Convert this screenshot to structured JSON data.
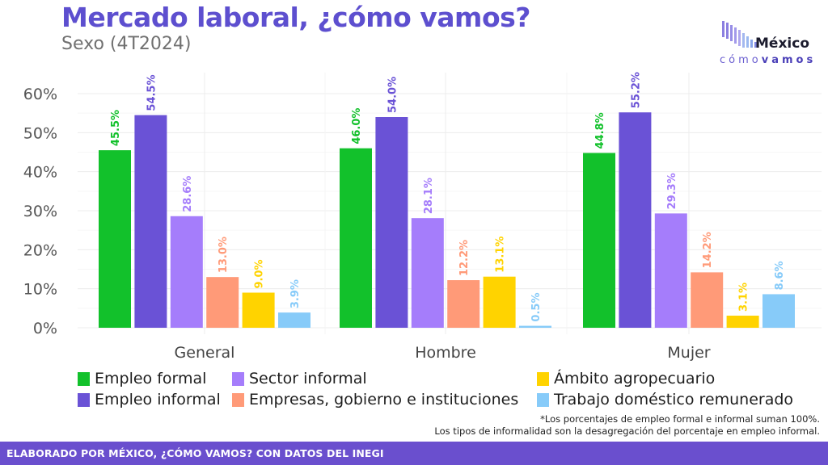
{
  "header": {
    "title": "Mercado laboral, ¿cómo vamos?",
    "subtitle": "Sexo (4T2024)"
  },
  "logo": {
    "name": "México",
    "tagline_light": "cómo",
    "tagline_bold": "vamos"
  },
  "colors": {
    "title": "#5d4fcf",
    "footer": "#6a4fce",
    "Empleo formal": "#12c12b",
    "Empleo informal": "#6a52d6",
    "Sector informal": "#a57dfb",
    "Empresas, gobierno e instituciones": "#ff9a78",
    "Ámbito agropecuario": "#ffd300",
    "Trabajo doméstico remunerado": "#87cbf9"
  },
  "chart_data": {
    "type": "bar",
    "title": "Mercado laboral, ¿cómo vamos?",
    "subtitle": "Sexo (4T2024)",
    "xlabel": "",
    "ylabel": "",
    "categories": [
      "General",
      "Hombre",
      "Mujer"
    ],
    "ylim": [
      0,
      60
    ],
    "yticks": [
      "0%",
      "10%",
      "20%",
      "30%",
      "40%",
      "50%",
      "60%"
    ],
    "ytick_values": [
      0,
      10,
      20,
      30,
      40,
      50,
      60
    ],
    "grid": true,
    "legend_position": "bottom",
    "series": [
      {
        "name": "Empleo formal",
        "values": [
          45.5,
          46.0,
          44.8
        ],
        "labels": [
          "45.5%",
          "46.0%",
          "44.8%"
        ]
      },
      {
        "name": "Empleo informal",
        "values": [
          54.5,
          54.0,
          55.2
        ],
        "labels": [
          "54.5%",
          "54.0%",
          "55.2%"
        ]
      },
      {
        "name": "Sector informal",
        "values": [
          28.6,
          28.1,
          29.3
        ],
        "labels": [
          "28.6%",
          "28.1%",
          "29.3%"
        ]
      },
      {
        "name": "Empresas, gobierno e instituciones",
        "values": [
          13.0,
          12.2,
          14.2
        ],
        "labels": [
          "13.0%",
          "12.2%",
          "14.2%"
        ]
      },
      {
        "name": "Ámbito agropecuario",
        "values": [
          9.0,
          13.1,
          3.1
        ],
        "labels": [
          "9.0%",
          "13.1%",
          "3.1%"
        ]
      },
      {
        "name": "Trabajo doméstico remunerado",
        "values": [
          3.9,
          0.5,
          8.6
        ],
        "labels": [
          "3.9%",
          "0.5%",
          "8.6%"
        ]
      }
    ]
  },
  "legend": {
    "items": [
      {
        "label": "Empleo formal"
      },
      {
        "label": "Empleo informal"
      },
      {
        "label": "Sector informal"
      },
      {
        "label": "Empresas, gobierno e instituciones"
      },
      {
        "label": "Ámbito agropecuario"
      },
      {
        "label": "Trabajo doméstico remunerado"
      }
    ]
  },
  "notes": {
    "line1": "*Los porcentajes de empleo formal e informal suman 100%.",
    "line2": "Los tipos de informalidad son la desagregación del porcentaje en empleo informal."
  },
  "footer": {
    "text": "ELABORADO POR MÉXICO, ¿CÓMO VAMOS? CON DATOS DEL INEGI"
  }
}
